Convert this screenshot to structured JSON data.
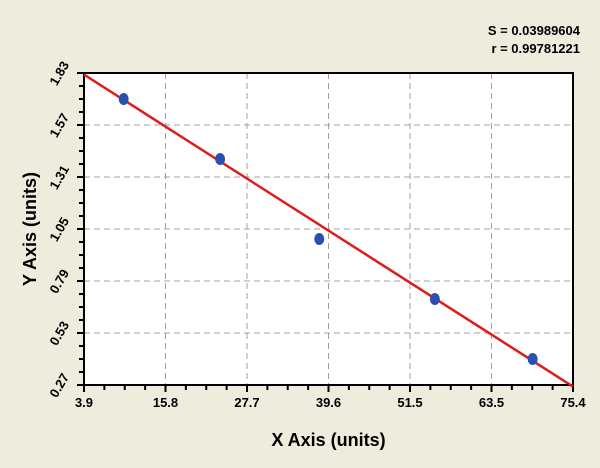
{
  "chart_data": {
    "type": "scatter",
    "title": "",
    "xlabel": "X Axis (units)",
    "ylabel": "Y Axis (units)",
    "xlim": [
      3.9,
      75.4
    ],
    "ylim": [
      0.27,
      1.83
    ],
    "xticks": [
      "3.9",
      "15.8",
      "27.7",
      "39.6",
      "51.5",
      "63.5",
      "75.4"
    ],
    "yticks": [
      "0.27",
      "0.53",
      "0.79",
      "1.05",
      "1.31",
      "1.57",
      "1.83"
    ],
    "grid": true,
    "points": [
      {
        "x": 9.7,
        "y": 1.7
      },
      {
        "x": 23.8,
        "y": 1.4
      },
      {
        "x": 38.3,
        "y": 1.0
      },
      {
        "x": 55.2,
        "y": 0.7
      },
      {
        "x": 69.5,
        "y": 0.4
      }
    ],
    "fit_line": {
      "x": [
        3.9,
        75.4
      ],
      "y": [
        1.822,
        0.262
      ]
    },
    "annotations": {
      "s": "S = 0.03989604",
      "r": "r = 0.99781221"
    },
    "colors": {
      "points": "#2b4fb0",
      "line": "#e01b1b",
      "background": "#eeecdc",
      "plot": "#ffffff",
      "grid": "#a0a0a0"
    }
  }
}
